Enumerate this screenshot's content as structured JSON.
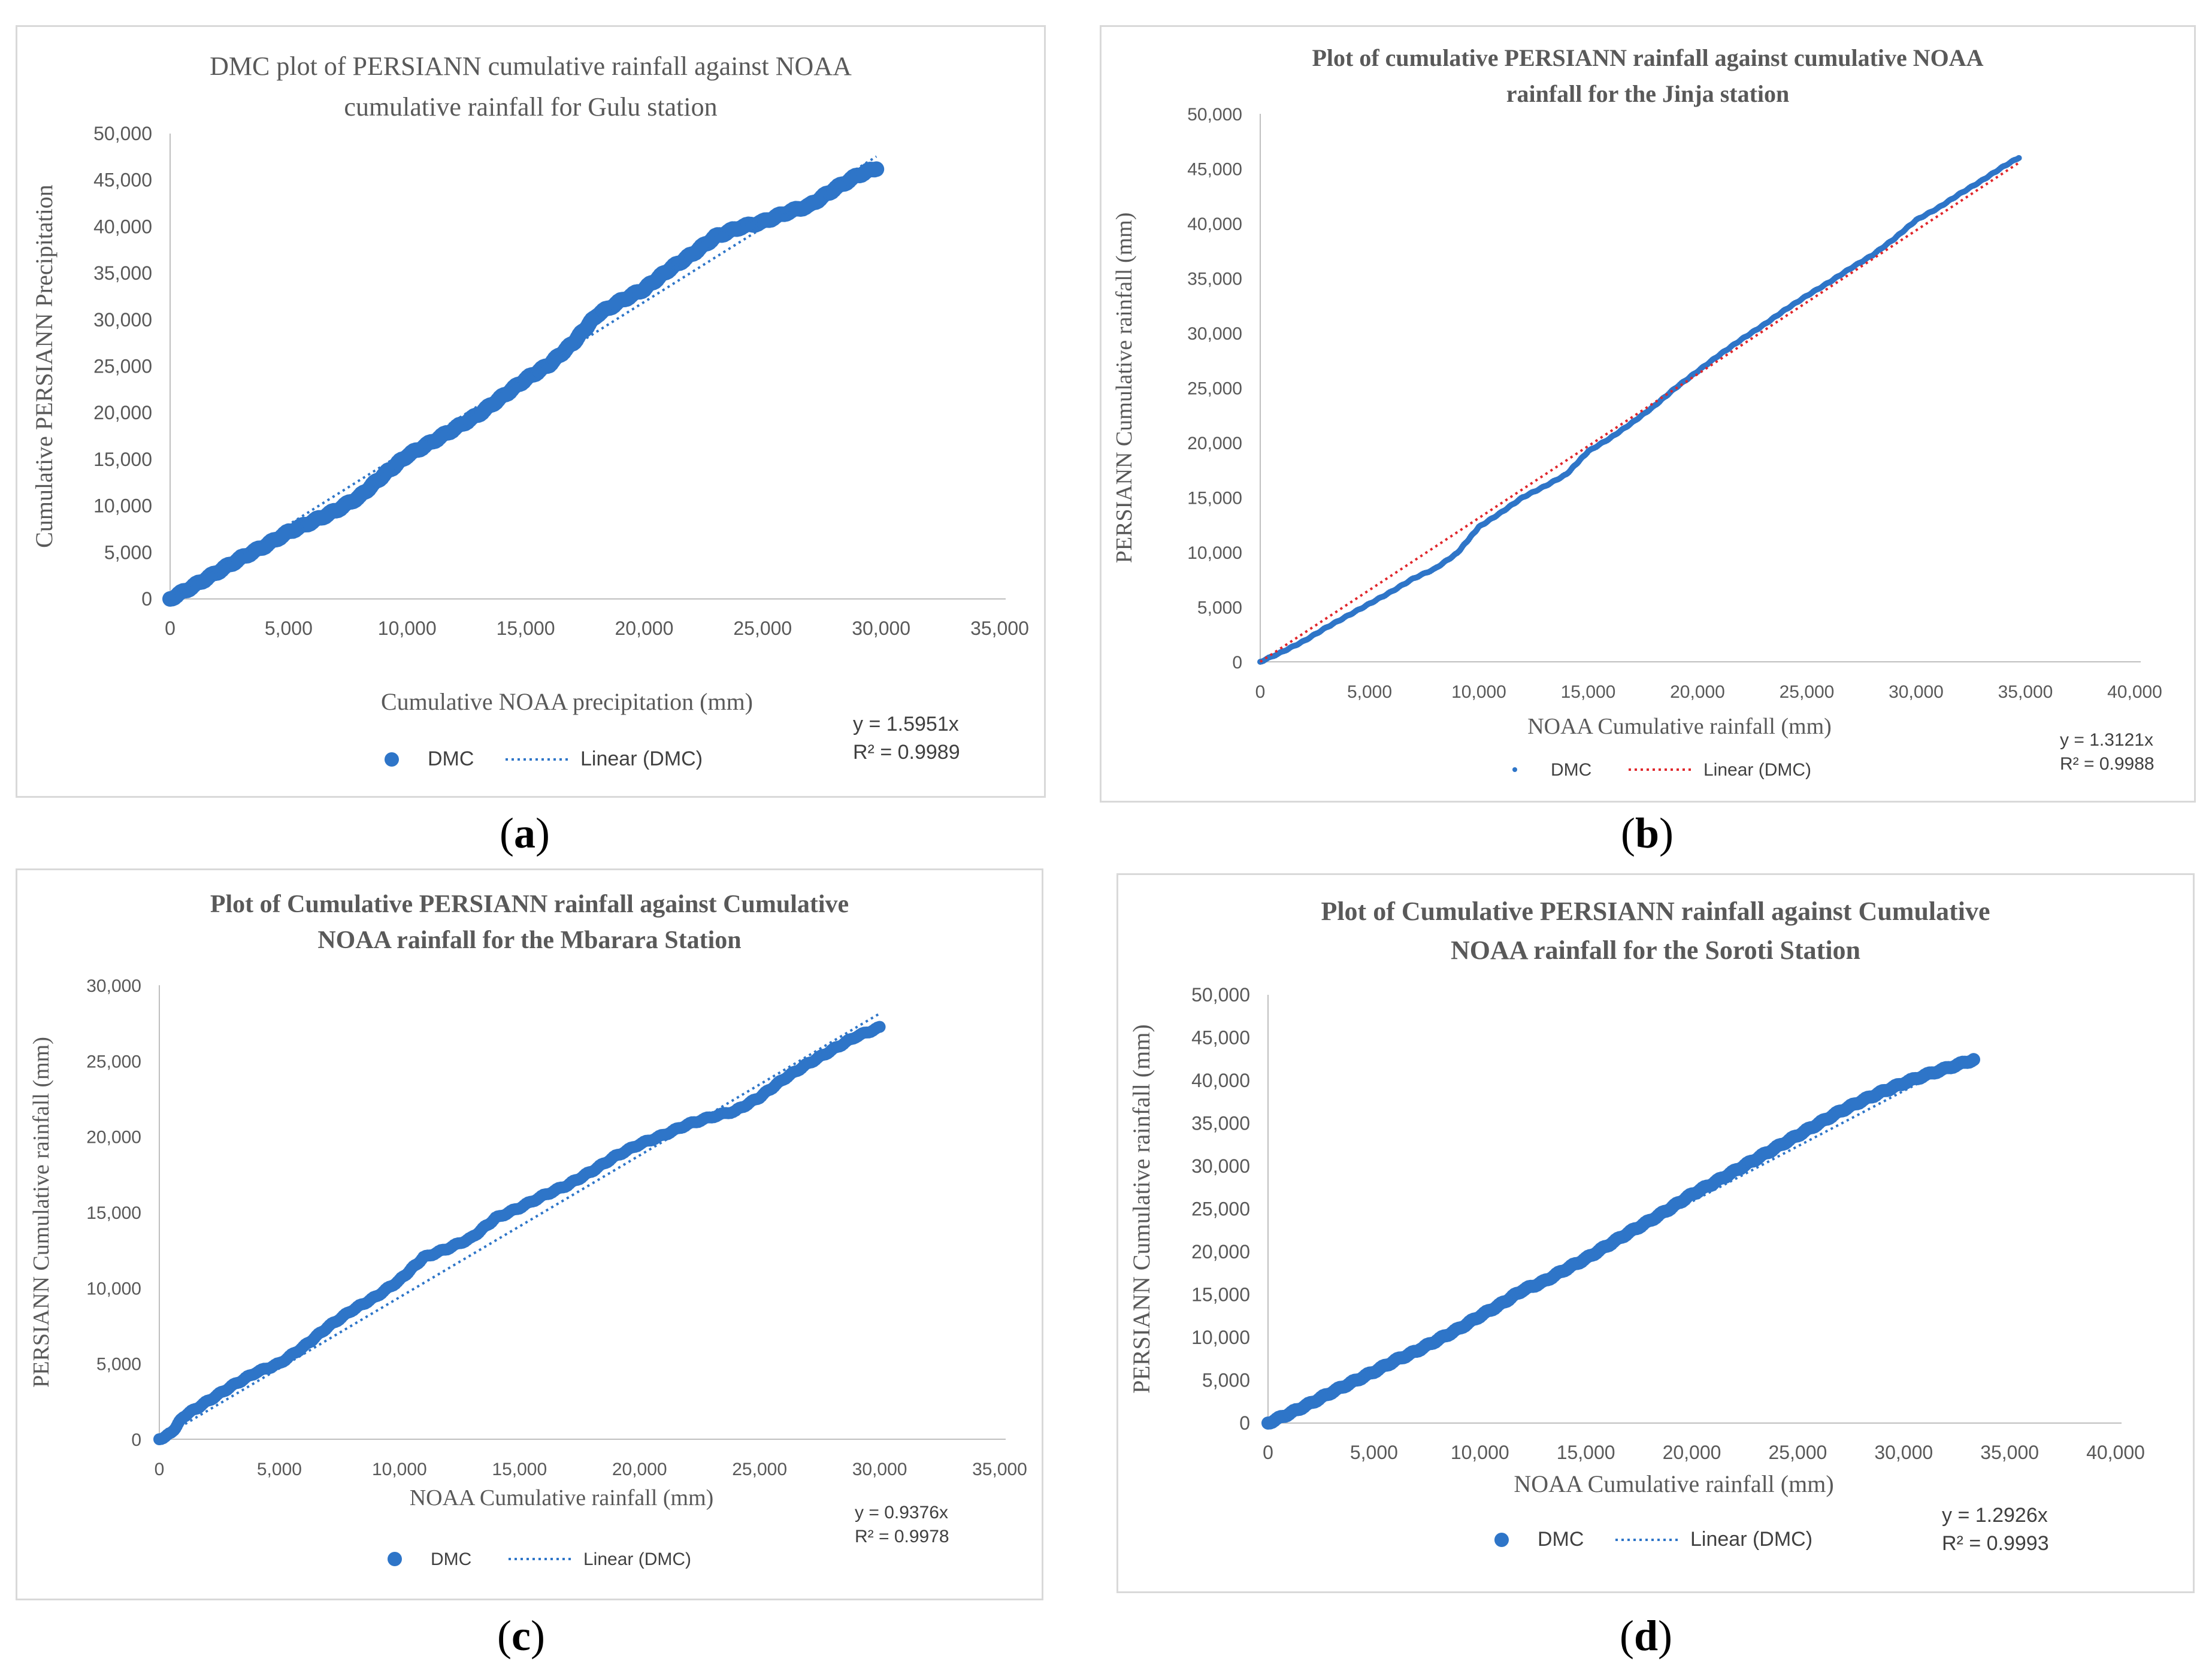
{
  "colors": {
    "series": "#2e75c8",
    "trend_blue": "#2e75c8",
    "trend_red": "#e0262b",
    "axis": "#bfbfbf",
    "text": "#595959"
  },
  "panels": [
    {
      "id": "a",
      "caption": "a",
      "chart_data": {
        "type": "scatter",
        "title_lines": [
          "DMC plot of PERSIANN cumulative rainfall  against NOAA",
          "cumulative rainfall  for Gulu station"
        ],
        "xlabel": "Cumulative NOAA  precipitation (mm)",
        "ylabel": "Cumulative PERSIANN  Precipitation",
        "xlim": [
          0,
          35000
        ],
        "ylim": [
          0,
          50000
        ],
        "xticks": [
          0,
          5000,
          10000,
          15000,
          20000,
          25000,
          30000,
          35000
        ],
        "xtick_labels": [
          "0",
          "5,000",
          "10,000",
          "15,000",
          "20,000",
          "25,000",
          "30,000",
          "35,000"
        ],
        "yticks": [
          0,
          5000,
          10000,
          15000,
          20000,
          25000,
          30000,
          35000,
          40000,
          45000,
          50000
        ],
        "ytick_labels": [
          "0",
          "5,000",
          "10,000",
          "15,000",
          "20,000",
          "25,000",
          "30,000",
          "35,000",
          "40,000",
          "45,000",
          "50,000"
        ],
        "series": [
          {
            "name": "DMC",
            "marker": "circle",
            "points": [
              [
                0,
                0
              ],
              [
                1000,
                1400
              ],
              [
                2000,
                2900
              ],
              [
                3000,
                4400
              ],
              [
                4000,
                5700
              ],
              [
                5000,
                7200
              ],
              [
                6000,
                8300
              ],
              [
                7000,
                9500
              ],
              [
                8000,
                11000
              ],
              [
                9000,
                13300
              ],
              [
                10000,
                15400
              ],
              [
                11000,
                16800
              ],
              [
                12000,
                18300
              ],
              [
                13000,
                19800
              ],
              [
                14000,
                21700
              ],
              [
                15000,
                23600
              ],
              [
                16000,
                25200
              ],
              [
                17000,
                27500
              ],
              [
                18000,
                30500
              ],
              [
                19000,
                32000
              ],
              [
                20000,
                33300
              ],
              [
                21000,
                35300
              ],
              [
                22000,
                37000
              ],
              [
                23000,
                38900
              ],
              [
                24000,
                39900
              ],
              [
                25000,
                40500
              ],
              [
                26000,
                41500
              ],
              [
                27000,
                42300
              ],
              [
                28000,
                44000
              ],
              [
                29000,
                45500
              ],
              [
                29800,
                46300
              ]
            ]
          }
        ],
        "trendline": {
          "name": "Linear (DMC)",
          "slope": 1.5951,
          "x_range": [
            0,
            29800
          ],
          "style": "dotted",
          "color": "blue"
        },
        "legend": [
          "DMC",
          "Linear (DMC)"
        ],
        "equation": "y = 1.5951x",
        "r2": "R² = 0.9989"
      }
    },
    {
      "id": "b",
      "caption": "b",
      "chart_data": {
        "type": "scatter",
        "title_lines": [
          "Plot of cumulative PERSIANN rainfall against cumulative NOAA",
          "rainfall for the Jinja station"
        ],
        "xlabel": "NOAA Cumulative rainfall (mm)",
        "ylabel": "PERSIANN Cumulative rainfall (mm)",
        "xlim": [
          0,
          40000
        ],
        "ylim": [
          0,
          50000
        ],
        "xticks": [
          0,
          5000,
          10000,
          15000,
          20000,
          25000,
          30000,
          35000,
          40000
        ],
        "xtick_labels": [
          "0",
          "5,000",
          "10,000",
          "15,000",
          "20,000",
          "25,000",
          "30,000",
          "35,000",
          "40,000"
        ],
        "yticks": [
          0,
          5000,
          10000,
          15000,
          20000,
          25000,
          30000,
          35000,
          40000,
          45000,
          50000
        ],
        "ytick_labels": [
          "0",
          "5,000",
          "10,000",
          "15,000",
          "20,000",
          "25,000",
          "30,000",
          "35,000",
          "40,000",
          "45,000",
          "50,000"
        ],
        "series": [
          {
            "name": "DMC",
            "marker": "dot",
            "points": [
              [
                0,
                0
              ],
              [
                1000,
                900
              ],
              [
                2000,
                1900
              ],
              [
                3000,
                3100
              ],
              [
                4000,
                4200
              ],
              [
                5000,
                5300
              ],
              [
                6000,
                6400
              ],
              [
                7000,
                7600
              ],
              [
                8000,
                8500
              ],
              [
                9000,
                9900
              ],
              [
                10000,
                12300
              ],
              [
                11000,
                13600
              ],
              [
                12000,
                15000
              ],
              [
                13000,
                16000
              ],
              [
                14000,
                17100
              ],
              [
                15000,
                19200
              ],
              [
                16000,
                20400
              ],
              [
                17000,
                21800
              ],
              [
                18000,
                23300
              ],
              [
                19000,
                25000
              ],
              [
                20000,
                26500
              ],
              [
                21000,
                28000
              ],
              [
                22000,
                29400
              ],
              [
                23000,
                30700
              ],
              [
                24000,
                32100
              ],
              [
                25000,
                33400
              ],
              [
                26000,
                34600
              ],
              [
                27000,
                35900
              ],
              [
                28000,
                37100
              ],
              [
                29000,
                38600
              ],
              [
                30000,
                40300
              ],
              [
                31000,
                41400
              ],
              [
                32000,
                42700
              ],
              [
                33000,
                43900
              ],
              [
                34000,
                45200
              ],
              [
                34700,
                46000
              ]
            ]
          }
        ],
        "trendline": {
          "name": "Linear (DMC)",
          "slope": 1.3121,
          "x_range": [
            0,
            34700
          ],
          "style": "dotted",
          "color": "red"
        },
        "legend": [
          "DMC",
          "Linear (DMC)"
        ],
        "equation": "y = 1.3121x",
        "r2": "R² = 0.9988"
      }
    },
    {
      "id": "c",
      "caption": "c",
      "chart_data": {
        "type": "scatter",
        "title_lines": [
          "Plot of Cumulative PERSIANN rainfall against Cumulative",
          "NOAA rainfall for the Mbarara Station"
        ],
        "xlabel": "NOAA Cumulative rainfall (mm)",
        "ylabel": "PERSIANN Cumulative rainfall (mm)",
        "xlim": [
          0,
          35000
        ],
        "ylim": [
          0,
          30000
        ],
        "xticks": [
          0,
          5000,
          10000,
          15000,
          20000,
          25000,
          30000,
          35000
        ],
        "xtick_labels": [
          "0",
          "5,000",
          "10,000",
          "15,000",
          "20,000",
          "25,000",
          "30,000",
          "35,000"
        ],
        "yticks": [
          0,
          5000,
          10000,
          15000,
          20000,
          25000,
          30000
        ],
        "ytick_labels": [
          "0",
          "5,000",
          "10,000",
          "15,000",
          "20,000",
          "25,000",
          "30,000"
        ],
        "series": [
          {
            "name": "DMC",
            "marker": "circle",
            "points": [
              [
                0,
                0
              ],
              [
                500,
                400
              ],
              [
                1000,
                1500
              ],
              [
                2000,
                2500
              ],
              [
                3000,
                3500
              ],
              [
                4000,
                4400
              ],
              [
                5000,
                5000
              ],
              [
                6000,
                6100
              ],
              [
                7000,
                7400
              ],
              [
                8000,
                8500
              ],
              [
                9000,
                9400
              ],
              [
                10000,
                10500
              ],
              [
                11000,
                12000
              ],
              [
                12000,
                12600
              ],
              [
                13000,
                13300
              ],
              [
                14000,
                14600
              ],
              [
                15000,
                15300
              ],
              [
                16000,
                16100
              ],
              [
                17000,
                16800
              ],
              [
                18000,
                17700
              ],
              [
                19000,
                18700
              ],
              [
                20000,
                19500
              ],
              [
                21000,
                20100
              ],
              [
                22000,
                20800
              ],
              [
                23000,
                21300
              ],
              [
                24000,
                21700
              ],
              [
                25000,
                22600
              ],
              [
                26000,
                23800
              ],
              [
                27000,
                24800
              ],
              [
                28000,
                25700
              ],
              [
                29000,
                26600
              ],
              [
                30000,
                27200
              ]
            ]
          }
        ],
        "trendline": {
          "name": "Linear (DMC)",
          "slope": 0.9376,
          "x_range": [
            0,
            30000
          ],
          "style": "dotted",
          "color": "blue"
        },
        "legend": [
          "DMC",
          "Linear (DMC)"
        ],
        "equation": "y = 0.9376x",
        "r2": "R² = 0.9978"
      }
    },
    {
      "id": "d",
      "caption": "d",
      "chart_data": {
        "type": "scatter",
        "title_lines": [
          "Plot of Cumulative PERSIANN rainfall against Cumulative",
          "NOAA rainfall for the Soroti Station"
        ],
        "xlabel": "NOAA Cumulative rainfall (mm)",
        "ylabel": "PERSIANN Cumulative rainfall (mm)",
        "xlim": [
          0,
          40000
        ],
        "ylim": [
          0,
          50000
        ],
        "xticks": [
          0,
          5000,
          10000,
          15000,
          20000,
          25000,
          30000,
          35000,
          40000
        ],
        "xtick_labels": [
          "0",
          "5,000",
          "10,000",
          "15,000",
          "20,000",
          "25,000",
          "30,000",
          "35,000",
          "40,000"
        ],
        "yticks": [
          0,
          5000,
          10000,
          15000,
          20000,
          25000,
          30000,
          35000,
          40000,
          45000,
          50000
        ],
        "ytick_labels": [
          "0",
          "5,000",
          "10,000",
          "15,000",
          "20,000",
          "25,000",
          "30,000",
          "35,000",
          "40,000",
          "45,000",
          "50,000"
        ],
        "series": [
          {
            "name": "DMC",
            "marker": "circle",
            "points": [
              [
                0,
                0
              ],
              [
                1000,
                1100
              ],
              [
                2000,
                2300
              ],
              [
                3000,
                3600
              ],
              [
                4000,
                4800
              ],
              [
                5000,
                6000
              ],
              [
                6000,
                7300
              ],
              [
                7000,
                8400
              ],
              [
                8000,
                9700
              ],
              [
                9000,
                11000
              ],
              [
                10000,
                12500
              ],
              [
                11000,
                13900
              ],
              [
                12000,
                15500
              ],
              [
                13000,
                16500
              ],
              [
                14000,
                17900
              ],
              [
                15000,
                19200
              ],
              [
                16000,
                20700
              ],
              [
                17000,
                22200
              ],
              [
                18000,
                23600
              ],
              [
                19000,
                25100
              ],
              [
                20000,
                26700
              ],
              [
                21000,
                28000
              ],
              [
                22000,
                29400
              ],
              [
                23000,
                30800
              ],
              [
                24000,
                32200
              ],
              [
                25000,
                33600
              ],
              [
                26000,
                35000
              ],
              [
                27000,
                36400
              ],
              [
                28000,
                37600
              ],
              [
                29000,
                38700
              ],
              [
                30000,
                39700
              ],
              [
                31000,
                40600
              ],
              [
                32000,
                41400
              ],
              [
                33000,
                42200
              ],
              [
                33300,
                42400
              ]
            ]
          }
        ],
        "trendline": {
          "name": "Linear (DMC)",
          "slope": 1.2926,
          "x_range": [
            0,
            33300
          ],
          "style": "dotted",
          "color": "blue"
        },
        "legend": [
          "DMC",
          "Linear (DMC)"
        ],
        "equation": "y = 1.2926x",
        "r2": "R² = 0.9993"
      }
    }
  ]
}
